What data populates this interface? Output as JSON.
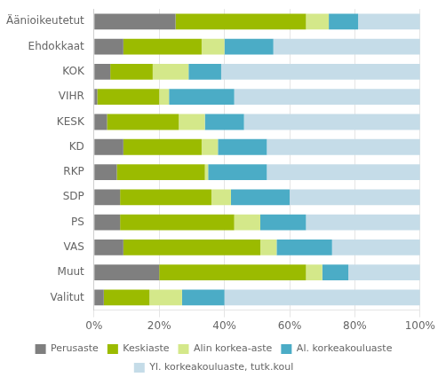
{
  "chart_data": {
    "type": "bar",
    "orientation": "horizontal",
    "stacked": true,
    "categories": [
      "Äänioikeutetut",
      "Ehdokkaat",
      "KOK",
      "VIHR",
      "KESK",
      "KD",
      "RKP",
      "SDP",
      "PS",
      "VAS",
      "Muut",
      "Valitut"
    ],
    "series": [
      {
        "name": "Perusaste",
        "color": "#7F7F7F",
        "values": [
          25,
          9,
          5,
          1,
          4,
          9,
          7,
          8,
          8,
          9,
          20,
          3
        ]
      },
      {
        "name": "Keskiaste",
        "color": "#9BBB00",
        "values": [
          40,
          24,
          13,
          19,
          22,
          24,
          27,
          28,
          35,
          42,
          45,
          14
        ]
      },
      {
        "name": "Alin korkea-aste",
        "color": "#D4E88A",
        "values": [
          7,
          7,
          11,
          3,
          8,
          5,
          1,
          6,
          8,
          5,
          5,
          10
        ]
      },
      {
        "name": "Al. korkeakouluaste",
        "color": "#4BACC6",
        "values": [
          9,
          15,
          10,
          20,
          12,
          15,
          18,
          18,
          14,
          17,
          8,
          13
        ]
      },
      {
        "name": "Yl. korkeakouluaste, tutk.koul",
        "color": "#C5DCE8",
        "values": [
          19,
          45,
          61,
          57,
          54,
          47,
          47,
          40,
          35,
          27,
          22,
          60
        ]
      }
    ],
    "xlim": [
      0,
      100
    ],
    "xticks": [
      {
        "value": 0,
        "label": "0%"
      },
      {
        "value": 20,
        "label": "20%"
      },
      {
        "value": 40,
        "label": "40%"
      },
      {
        "value": 60,
        "label": "60%"
      },
      {
        "value": 80,
        "label": "80%"
      },
      {
        "value": 100,
        "label": "100%"
      }
    ],
    "grid": true,
    "legend": "bottom"
  }
}
